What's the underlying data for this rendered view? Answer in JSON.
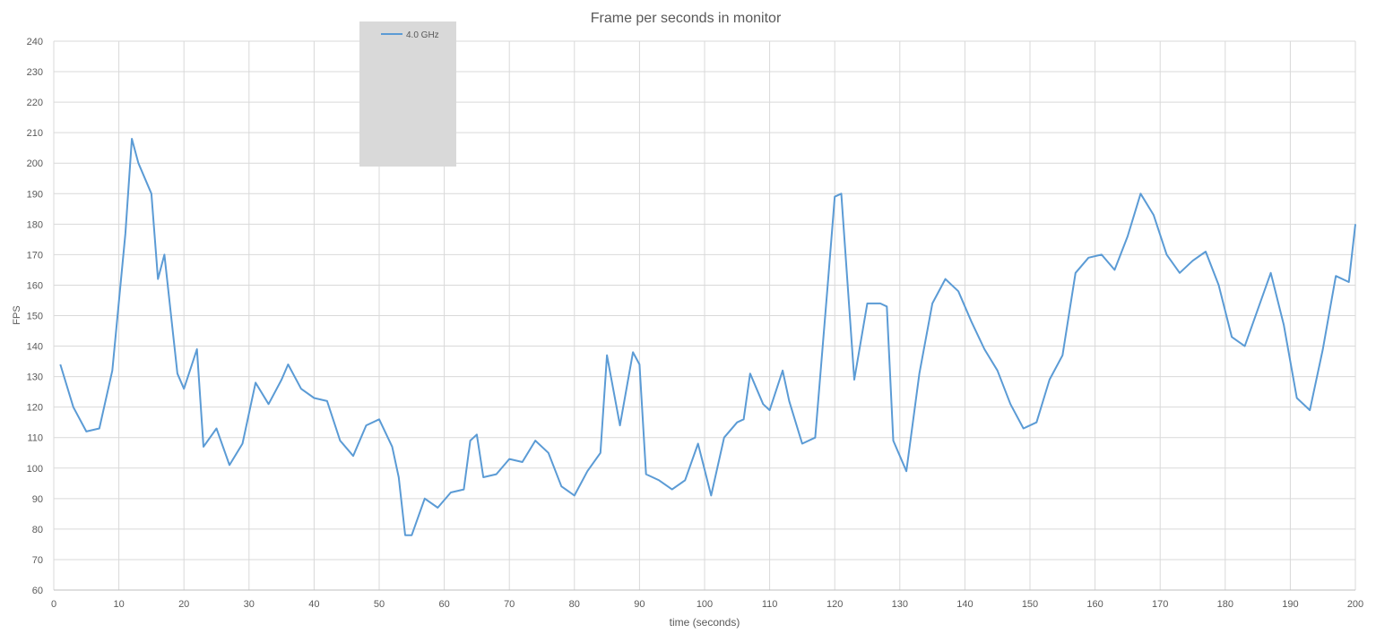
{
  "chart_data": {
    "type": "line",
    "title": "Frame per seconds in monitor",
    "xlabel": "time (seconds)",
    "ylabel": "FPS",
    "xlim": [
      0,
      200
    ],
    "ylim": [
      60,
      240
    ],
    "xticks": [
      0,
      10,
      20,
      30,
      40,
      50,
      60,
      70,
      80,
      90,
      100,
      110,
      120,
      130,
      140,
      150,
      160,
      170,
      180,
      190,
      200
    ],
    "yticks": [
      60,
      70,
      80,
      90,
      100,
      110,
      120,
      130,
      140,
      150,
      160,
      170,
      180,
      190,
      200,
      210,
      220,
      230,
      240
    ],
    "grid": true,
    "legend_position": "top-left-inside",
    "series": [
      {
        "name": "4.0 GHz",
        "color": "#5b9bd5",
        "x": [
          1,
          3,
          5,
          7,
          9,
          11,
          12,
          13,
          15,
          16,
          17,
          19,
          20,
          22,
          23,
          25,
          27,
          29,
          31,
          33,
          35,
          36,
          38,
          40,
          42,
          44,
          46,
          48,
          50,
          52,
          53,
          54,
          55,
          57,
          59,
          61,
          63,
          64,
          65,
          66,
          68,
          70,
          72,
          74,
          76,
          78,
          80,
          82,
          84,
          85,
          87,
          89,
          90,
          91,
          93,
          95,
          97,
          99,
          101,
          103,
          105,
          106,
          107,
          109,
          110,
          112,
          113,
          115,
          117,
          119,
          120,
          121,
          123,
          125,
          127,
          128,
          129,
          131,
          133,
          135,
          137,
          139,
          141,
          143,
          145,
          147,
          149,
          151,
          153,
          155,
          157,
          159,
          161,
          163,
          165,
          167,
          169,
          171,
          173,
          175,
          177,
          179,
          181,
          183,
          185,
          187,
          189,
          191,
          193,
          195,
          197,
          199,
          200
        ],
        "values": [
          134,
          120,
          112,
          113,
          132,
          177,
          208,
          200,
          190,
          162,
          170,
          131,
          126,
          139,
          107,
          113,
          101,
          108,
          128,
          121,
          129,
          134,
          126,
          123,
          122,
          109,
          104,
          114,
          116,
          107,
          97,
          78,
          78,
          90,
          87,
          92,
          93,
          109,
          111,
          97,
          98,
          103,
          102,
          109,
          105,
          94,
          91,
          99,
          105,
          137,
          114,
          138,
          134,
          98,
          96,
          93,
          96,
          108,
          91,
          110,
          115,
          116,
          131,
          121,
          119,
          132,
          122,
          108,
          110,
          162,
          189,
          190,
          129,
          154,
          154,
          153,
          109,
          99,
          131,
          154,
          162,
          158,
          148,
          139,
          132,
          121,
          113,
          115,
          129,
          137,
          164,
          169,
          170,
          165,
          176,
          190,
          183,
          170,
          164,
          168,
          171,
          160,
          143,
          140,
          152,
          164,
          147,
          123,
          119,
          139,
          163,
          161,
          180
        ],
        "note_values": []
      }
    ]
  }
}
